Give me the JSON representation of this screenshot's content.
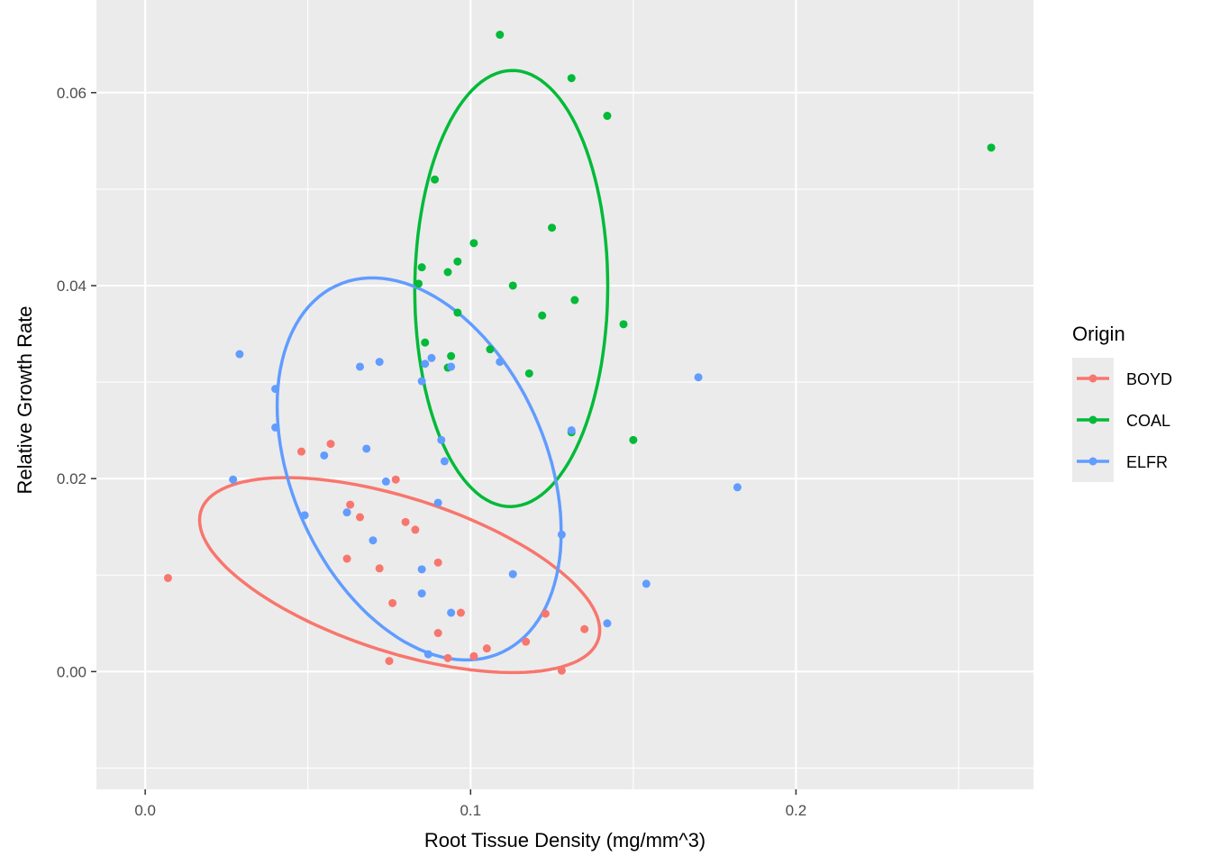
{
  "chart_data": {
    "type": "scatter",
    "title": "",
    "xlabel": "Root Tissue Density (mg/mm^3)",
    "ylabel": "Relative Growth Rate",
    "xlim": [
      -0.015,
      0.273
    ],
    "ylim": [
      -0.0122,
      0.0696
    ],
    "x_ticks": [
      0.0,
      0.1,
      0.2
    ],
    "x_tick_labels": [
      "0.0",
      "0.1",
      "0.2"
    ],
    "y_ticks": [
      0.0,
      0.02,
      0.04,
      0.06
    ],
    "y_tick_labels": [
      "0.00",
      "0.02",
      "0.04",
      "0.06"
    ],
    "grid": true,
    "panel_background": "#ebebeb",
    "legend": {
      "title": "Origin",
      "placement": "right"
    },
    "series": [
      {
        "name": "BOYD",
        "color": "#f8766d",
        "points": [
          [
            0.007,
            0.0097
          ],
          [
            0.048,
            0.0228
          ],
          [
            0.057,
            0.0236
          ],
          [
            0.062,
            0.0117
          ],
          [
            0.063,
            0.0173
          ],
          [
            0.066,
            0.016
          ],
          [
            0.072,
            0.0107
          ],
          [
            0.075,
            0.0011
          ],
          [
            0.076,
            0.0071
          ],
          [
            0.077,
            0.0199
          ],
          [
            0.08,
            0.0155
          ],
          [
            0.083,
            0.0147
          ],
          [
            0.09,
            0.0113
          ],
          [
            0.09,
            0.004
          ],
          [
            0.093,
            0.0014
          ],
          [
            0.097,
            0.0061
          ],
          [
            0.101,
            0.0016
          ],
          [
            0.105,
            0.0024
          ],
          [
            0.117,
            0.0031
          ],
          [
            0.123,
            0.006
          ],
          [
            0.128,
            0.0001
          ],
          [
            0.135,
            0.0044
          ]
        ],
        "ellipse": {
          "center": [
            0.0782,
            0.01
          ],
          "a": 0.123,
          "b": 0.0101,
          "angle": -0.2004
        }
      },
      {
        "name": "COAL",
        "color": "#00ba38",
        "points": [
          [
            0.109,
            0.066
          ],
          [
            0.131,
            0.0615
          ],
          [
            0.142,
            0.0576
          ],
          [
            0.26,
            0.0543
          ],
          [
            0.089,
            0.051
          ],
          [
            0.125,
            0.046
          ],
          [
            0.101,
            0.0444
          ],
          [
            0.096,
            0.0425
          ],
          [
            0.085,
            0.0419
          ],
          [
            0.093,
            0.0414
          ],
          [
            0.084,
            0.0402
          ],
          [
            0.113,
            0.04
          ],
          [
            0.132,
            0.0385
          ],
          [
            0.122,
            0.0369
          ],
          [
            0.096,
            0.0372
          ],
          [
            0.147,
            0.036
          ],
          [
            0.086,
            0.0341
          ],
          [
            0.106,
            0.0334
          ],
          [
            0.094,
            0.0327
          ],
          [
            0.093,
            0.0315
          ],
          [
            0.118,
            0.0309
          ],
          [
            0.131,
            0.0248
          ],
          [
            0.15,
            0.024
          ]
        ],
        "ellipse": {
          "center": [
            0.1125,
            0.0397
          ],
          "a": 0.0593,
          "b": 0.0226,
          "angle": 0.0035
        }
      },
      {
        "name": "ELFR",
        "color": "#619cff",
        "points": [
          [
            0.029,
            0.0329
          ],
          [
            0.04,
            0.0293
          ],
          [
            0.04,
            0.0253
          ],
          [
            0.027,
            0.0199
          ],
          [
            0.049,
            0.0162
          ],
          [
            0.055,
            0.0224
          ],
          [
            0.062,
            0.0165
          ],
          [
            0.066,
            0.0316
          ],
          [
            0.068,
            0.0231
          ],
          [
            0.07,
            0.0136
          ],
          [
            0.072,
            0.0321
          ],
          [
            0.074,
            0.0197
          ],
          [
            0.085,
            0.0301
          ],
          [
            0.086,
            0.0319
          ],
          [
            0.088,
            0.0325
          ],
          [
            0.085,
            0.0106
          ],
          [
            0.085,
            0.0081
          ],
          [
            0.087,
            0.0018
          ],
          [
            0.09,
            0.0175
          ],
          [
            0.091,
            0.024
          ],
          [
            0.092,
            0.0218
          ],
          [
            0.094,
            0.0316
          ],
          [
            0.094,
            0.0061
          ],
          [
            0.109,
            0.0321
          ],
          [
            0.113,
            0.0101
          ],
          [
            0.128,
            0.0142
          ],
          [
            0.131,
            0.025
          ],
          [
            0.142,
            0.005
          ],
          [
            0.154,
            0.0091
          ],
          [
            0.17,
            0.0305
          ],
          [
            0.182,
            0.0191
          ]
        ],
        "ellipse": {
          "center": [
            0.0842,
            0.021
          ],
          "a": 0.0873,
          "b": 0.0198,
          "angle": -0.1123
        }
      }
    ]
  }
}
